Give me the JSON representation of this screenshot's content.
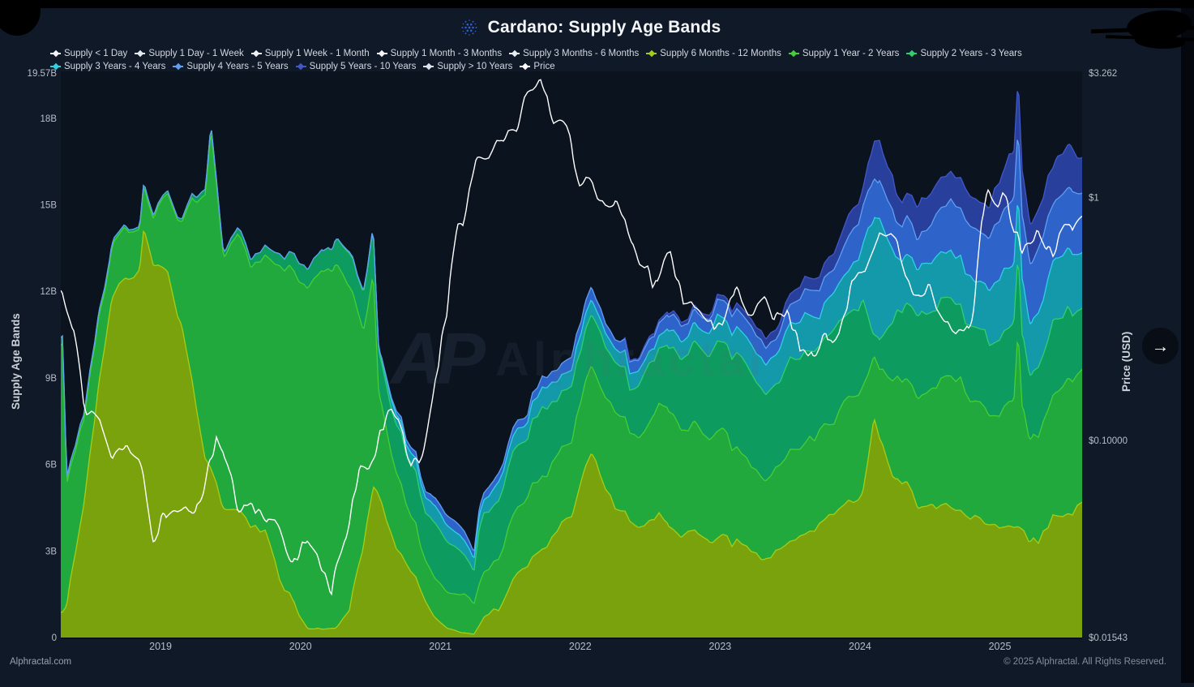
{
  "header": {
    "title": "Cardano: Supply Age Bands"
  },
  "watermark": {
    "monogram": "AP",
    "text": "Alphractal"
  },
  "ui": {
    "arrow_icon": "→"
  },
  "footer": {
    "left": "Alphractal.com",
    "right": "© 2025 Alphractal. All Rights Reserved."
  },
  "axes": {
    "left": {
      "title": "Supply Age Bands",
      "ticks": [
        {
          "label": "19.57B",
          "value": 19.57
        },
        {
          "label": "18B",
          "value": 18
        },
        {
          "label": "15B",
          "value": 15
        },
        {
          "label": "12B",
          "value": 12
        },
        {
          "label": "9B",
          "value": 9
        },
        {
          "label": "6B",
          "value": 6
        },
        {
          "label": "3B",
          "value": 3
        },
        {
          "label": "0",
          "value": 0
        }
      ]
    },
    "right": {
      "title": "Price (USD)",
      "scale": "log",
      "ticks": [
        {
          "label": "$3.262",
          "value": 3.262
        },
        {
          "label": "$1",
          "value": 1
        },
        {
          "label": "$0.10000",
          "value": 0.1
        },
        {
          "label": "$0.01543",
          "value": 0.01543
        }
      ]
    },
    "bottom": {
      "ticks": [
        {
          "label": "2019",
          "value": 2019
        },
        {
          "label": "2020",
          "value": 2020
        },
        {
          "label": "2021",
          "value": 2021
        },
        {
          "label": "2022",
          "value": 2022
        },
        {
          "label": "2023",
          "value": 2023
        },
        {
          "label": "2024",
          "value": 2024
        },
        {
          "label": "2025",
          "value": 2025
        }
      ]
    }
  },
  "chart_data": {
    "type": "area",
    "stacked": true,
    "title": "Cardano: Supply Age Bands",
    "x_unit": "year",
    "x_range": [
      2018.287,
      2025.588
    ],
    "ylim_left": [
      0,
      19.57
    ],
    "ylim_right": [
      0.01543,
      3.262
    ],
    "grid": false,
    "legend_position": "top",
    "x": [
      2018.3,
      2018.33,
      2018.38,
      2018.45,
      2018.55,
      2018.65,
      2018.75,
      2018.85,
      2018.88,
      2018.95,
      2019.05,
      2019.15,
      2019.25,
      2019.32,
      2019.36,
      2019.45,
      2019.55,
      2019.65,
      2019.75,
      2019.85,
      2019.95,
      2020.05,
      2020.15,
      2020.22,
      2020.25,
      2020.35,
      2020.45,
      2020.52,
      2020.56,
      2020.65,
      2020.75,
      2020.85,
      2020.95,
      2021.05,
      2021.15,
      2021.24,
      2021.28,
      2021.35,
      2021.45,
      2021.55,
      2021.6,
      2021.65,
      2021.75,
      2021.85,
      2021.95,
      2022.03,
      2022.08,
      2022.15,
      2022.25,
      2022.32,
      2022.42,
      2022.52,
      2022.62,
      2022.72,
      2022.82,
      2022.92,
      2023.02,
      2023.12,
      2023.22,
      2023.32,
      2023.42,
      2023.55,
      2023.67,
      2023.8,
      2023.92,
      2024.02,
      2024.1,
      2024.14,
      2024.26,
      2024.32,
      2024.42,
      2024.52,
      2024.62,
      2024.72,
      2024.82,
      2024.92,
      2025.02,
      2025.1,
      2025.13,
      2025.16,
      2025.22,
      2025.3,
      2025.4,
      2025.5,
      2025.58
    ],
    "series": [
      {
        "name": "Supply < 1 Day",
        "type": "band",
        "color": "#f1f4f8",
        "fill": "#f1f4f8",
        "values": 0
      },
      {
        "name": "Supply 1 Day - 1 Week",
        "type": "band",
        "color": "#e3e9f0",
        "fill": "#e3e9f0",
        "values": 0
      },
      {
        "name": "Supply 1 Week - 1 Month",
        "type": "band",
        "color": "#edf1f6",
        "fill": "#edf1f6",
        "values": 0
      },
      {
        "name": "Supply 1 Month - 3 Months",
        "type": "band",
        "color": "#f4f6f9",
        "fill": "#f4f6f9",
        "values": 0
      },
      {
        "name": "Supply 3 Months - 6 Months",
        "type": "band",
        "color": "#e8edf3",
        "fill": "#e8edf3",
        "values": 0
      },
      {
        "name": "Supply 6 Months - 12 Months",
        "type": "band",
        "color": "#a6cd15",
        "fill": "#79a20c",
        "values": [
          0.8,
          1.0,
          2.5,
          4.5,
          8.5,
          11.5,
          12.4,
          12.8,
          14.3,
          12.8,
          12.6,
          11.0,
          8.0,
          6.0,
          5.8,
          4.6,
          4.2,
          3.8,
          3.4,
          2.2,
          1.0,
          0.4,
          0.3,
          0.3,
          0.3,
          0.8,
          3.0,
          5.0,
          4.6,
          3.6,
          2.6,
          1.6,
          0.8,
          0.3,
          0.15,
          0.1,
          0.4,
          0.8,
          1.4,
          2.0,
          2.2,
          2.5,
          3.0,
          3.7,
          4.6,
          5.8,
          6.4,
          5.6,
          4.3,
          4.6,
          3.9,
          4.1,
          4.0,
          3.3,
          3.6,
          3.2,
          3.5,
          3.3,
          2.8,
          2.6,
          2.9,
          3.3,
          3.7,
          4.2,
          4.7,
          5.2,
          7.8,
          7.0,
          5.6,
          5.4,
          4.6,
          4.8,
          4.6,
          4.4,
          4.2,
          3.9,
          3.8,
          3.7,
          3.7,
          3.6,
          3.4,
          3.6,
          4.0,
          4.3,
          4.4
        ]
      },
      {
        "name": "Supply 1 Year - 2 Years",
        "type": "band",
        "color": "#44cf34",
        "fill": "#22a93e",
        "values": [
          9.2,
          4.0,
          3.5,
          2.8,
          2.3,
          1.9,
          1.7,
          1.6,
          1.8,
          1.7,
          2.6,
          3.7,
          7.0,
          9.4,
          11.8,
          8.6,
          9.5,
          9.0,
          9.5,
          10.8,
          11.5,
          11.6,
          12.4,
          12.3,
          12.5,
          11.1,
          7.3,
          7.2,
          3.4,
          2.8,
          2.2,
          1.8,
          1.6,
          1.4,
          1.2,
          1.0,
          1.6,
          1.8,
          2.0,
          2.2,
          2.2,
          2.3,
          2.4,
          2.5,
          2.7,
          2.9,
          3.0,
          3.1,
          3.2,
          3.5,
          3.3,
          3.6,
          3.8,
          3.5,
          3.6,
          3.4,
          3.6,
          3.4,
          3.2,
          3.0,
          3.0,
          3.1,
          3.2,
          3.4,
          3.6,
          3.8,
          2.2,
          2.4,
          3.6,
          3.8,
          4.0,
          4.2,
          4.5,
          4.6,
          4.0,
          3.9,
          4.2,
          4.4,
          6.8,
          4.0,
          3.6,
          4.0,
          4.4,
          4.6,
          4.4
        ]
      },
      {
        "name": "Supply 2 Years - 3 Years",
        "type": "band",
        "color": "#2ecf6e",
        "fill": "#0d9b5f",
        "values": [
          0.3,
          0.2,
          0.2,
          0.2,
          0.2,
          0.15,
          0.1,
          0.1,
          0.1,
          0.1,
          0.1,
          0.1,
          0.15,
          0.2,
          0.2,
          0.2,
          0.2,
          0.25,
          0.3,
          0.4,
          0.5,
          0.6,
          0.7,
          0.7,
          0.8,
          1.0,
          1.2,
          1.4,
          1.5,
          1.6,
          1.7,
          1.8,
          1.8,
          1.7,
          1.5,
          1.3,
          1.8,
          1.9,
          2.1,
          2.2,
          2.25,
          2.3,
          2.2,
          2.1,
          2.0,
          1.9,
          1.8,
          1.7,
          1.6,
          1.7,
          1.8,
          2.0,
          2.2,
          2.4,
          2.6,
          2.8,
          3.0,
          3.2,
          3.3,
          3.3,
          3.0,
          3.0,
          3.0,
          3.0,
          3.1,
          3.2,
          0.9,
          1.2,
          2.2,
          2.4,
          2.6,
          2.6,
          2.7,
          2.8,
          2.7,
          2.6,
          2.7,
          2.7,
          2.7,
          2.5,
          2.2,
          2.4,
          2.5,
          2.5,
          2.4
        ]
      },
      {
        "name": "Supply 3 Years - 4 Years",
        "type": "band",
        "color": "#2fd0e2",
        "fill": "#1499aa",
        "values": [
          0,
          0,
          0,
          0,
          0,
          0,
          0,
          0,
          0,
          0,
          0,
          0,
          0,
          0,
          0,
          0,
          0,
          0,
          0,
          0,
          0,
          0,
          0,
          0,
          0,
          0.05,
          0.05,
          0.05,
          0.1,
          0.3,
          0.4,
          0.5,
          0.5,
          0.5,
          0.45,
          0.4,
          0.5,
          0.55,
          0.6,
          0.65,
          0.65,
          0.65,
          0.6,
          0.6,
          0.6,
          0.6,
          0.55,
          0.55,
          0.5,
          0.55,
          0.5,
          0.55,
          0.6,
          0.65,
          0.7,
          0.75,
          0.8,
          0.85,
          0.9,
          0.95,
          1.0,
          1.1,
          1.2,
          1.3,
          1.5,
          1.7,
          4.2,
          4.4,
          1.8,
          1.7,
          1.6,
          1.7,
          1.8,
          1.9,
          1.8,
          1.8,
          2.0,
          2.1,
          2.1,
          2.0,
          1.8,
          1.9,
          2.0,
          2.0,
          1.9
        ]
      },
      {
        "name": "Supply 4 Years - 5 Years",
        "type": "band",
        "color": "#5f9ff2",
        "fill": "#2e63c9",
        "values": [
          0,
          0,
          0,
          0,
          0,
          0,
          0,
          0,
          0,
          0,
          0,
          0,
          0,
          0,
          0,
          0,
          0,
          0,
          0,
          0,
          0,
          0,
          0,
          0,
          0,
          0,
          0,
          0,
          0,
          0.1,
          0.15,
          0.2,
          0.25,
          0.3,
          0.3,
          0.25,
          0.25,
          0.3,
          0.3,
          0.35,
          0.35,
          0.35,
          0.4,
          0.4,
          0.45,
          0.45,
          0.45,
          0.45,
          0.4,
          0.45,
          0.4,
          0.45,
          0.5,
          0.5,
          0.55,
          0.55,
          0.6,
          0.6,
          0.65,
          0.65,
          0.7,
          0.75,
          0.8,
          0.9,
          1.0,
          1.2,
          1.2,
          1.3,
          1.1,
          1.1,
          1.2,
          1.3,
          1.4,
          1.5,
          1.6,
          1.7,
          2.0,
          2.2,
          2.2,
          2.1,
          1.9,
          2.0,
          2.2,
          2.3,
          2.2
        ]
      },
      {
        "name": "Supply 5 Years - 10 Years",
        "type": "band",
        "color": "#4257c9",
        "fill": "#283f9c",
        "values": [
          0,
          0,
          0,
          0,
          0,
          0,
          0,
          0,
          0,
          0,
          0,
          0,
          0,
          0,
          0,
          0,
          0,
          0,
          0,
          0,
          0,
          0,
          0,
          0,
          0,
          0,
          0,
          0,
          0,
          0,
          0,
          0,
          0,
          0,
          0,
          0,
          0,
          0,
          0,
          0,
          0,
          0,
          0,
          0,
          0,
          0,
          0,
          0,
          0,
          0.05,
          0.05,
          0.1,
          0.1,
          0.12,
          0.15,
          0.18,
          0.2,
          0.22,
          0.25,
          0.28,
          0.3,
          0.35,
          0.4,
          0.5,
          0.6,
          0.7,
          1.2,
          1.2,
          0.9,
          0.9,
          1.0,
          1.0,
          1.1,
          1.1,
          1.2,
          1.2,
          1.3,
          1.4,
          1.4,
          1.3,
          1.2,
          1.3,
          1.4,
          1.5,
          1.5
        ]
      },
      {
        "name": "Supply > 10 Years",
        "type": "band",
        "color": "#dde3ea",
        "fill": "#dde3ea",
        "values": 0
      },
      {
        "name": "Price",
        "type": "line",
        "axis": "right",
        "color": "#ffffff",
        "values": [
          0.34,
          0.3,
          0.25,
          0.16,
          0.13,
          0.1,
          0.083,
          0.072,
          0.065,
          0.04,
          0.043,
          0.046,
          0.052,
          0.07,
          0.083,
          0.09,
          0.058,
          0.052,
          0.043,
          0.04,
          0.034,
          0.046,
          0.033,
          0.024,
          0.032,
          0.048,
          0.072,
          0.09,
          0.105,
          0.13,
          0.105,
          0.095,
          0.16,
          0.32,
          0.95,
          1.15,
          1.25,
          1.35,
          1.5,
          1.9,
          2.6,
          3.0,
          2.6,
          2.2,
          1.55,
          1.3,
          1.15,
          0.95,
          1.05,
          0.85,
          0.55,
          0.48,
          0.52,
          0.45,
          0.4,
          0.31,
          0.3,
          0.38,
          0.35,
          0.38,
          0.32,
          0.28,
          0.26,
          0.25,
          0.39,
          0.55,
          0.62,
          0.72,
          0.6,
          0.45,
          0.44,
          0.38,
          0.34,
          0.35,
          0.36,
          1.05,
          0.95,
          0.72,
          0.8,
          0.72,
          0.65,
          0.7,
          0.58,
          0.85,
          0.82
        ]
      }
    ]
  }
}
